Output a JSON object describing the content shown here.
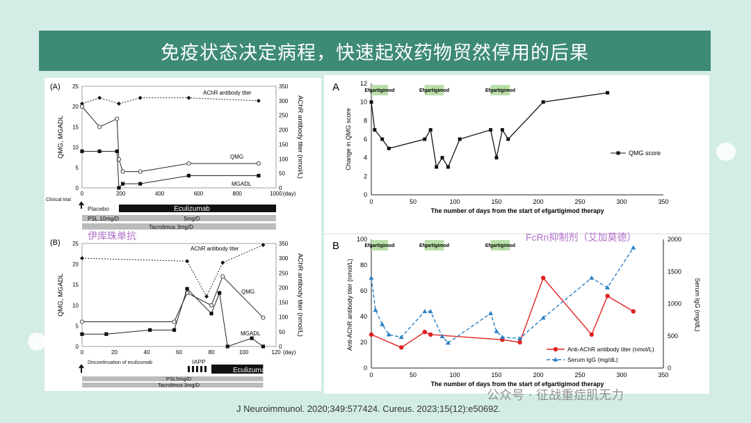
{
  "slide": {
    "title": "免疫状态决定病程，快速起效药物贸然停用的后果",
    "source": "J Neuroimmunol. 2020;349:577424. Cureus. 2023;15(12):e50692.",
    "watermark": "公众号 · 征战重症肌无力",
    "annotation_left": "伊库珠单抗",
    "annotation_right": "FcRn抑制剂（艾加莫德）"
  },
  "colors": {
    "banner": "#3d8a76",
    "background": "#d3ece6",
    "red": "#e02020",
    "blue": "#2b7fc4",
    "treatment_green": "#b9dfa8",
    "annotation": "#b070c8"
  },
  "chart_data": [
    {
      "id": "A_left",
      "type": "line",
      "panel_label": "(A)",
      "xlabel": "(day)",
      "ylabel_left": "QMG, MGADL",
      "ylabel_right": "AChR antibody titer (nmol/L)",
      "xlim": [
        0,
        1000
      ],
      "ylim_left": [
        0,
        25
      ],
      "ylim_right": [
        0,
        350
      ],
      "xticks": [
        0,
        200,
        400,
        600,
        800,
        1000
      ],
      "yticks_left": [
        0,
        5,
        10,
        15,
        20,
        25
      ],
      "yticks_right": [
        0,
        50,
        100,
        150,
        200,
        250,
        300,
        350
      ],
      "series": [
        {
          "name": "AChR antibody titer",
          "axis": "right",
          "style": "dotted-diamond",
          "points": [
            [
              0,
              290
            ],
            [
              90,
              310
            ],
            [
              190,
              290
            ],
            [
              300,
              310
            ],
            [
              550,
              310
            ],
            [
              910,
              300
            ]
          ]
        },
        {
          "name": "QMG",
          "axis": "left",
          "style": "open-circle",
          "points": [
            [
              0,
              20
            ],
            [
              90,
              15
            ],
            [
              180,
              17
            ],
            [
              190,
              7
            ],
            [
              210,
              4
            ],
            [
              300,
              4
            ],
            [
              550,
              6
            ],
            [
              910,
              6
            ]
          ]
        },
        {
          "name": "MGADL",
          "axis": "left",
          "style": "filled-square",
          "points": [
            [
              0,
              9
            ],
            [
              90,
              9
            ],
            [
              180,
              9
            ],
            [
              190,
              0
            ],
            [
              210,
              1
            ],
            [
              300,
              1
            ],
            [
              550,
              3
            ],
            [
              910,
              3
            ]
          ]
        }
      ],
      "treatments": [
        {
          "label": "Clinical trial"
        },
        {
          "label": "Placebo"
        },
        {
          "label": "Eculizumab"
        },
        {
          "label": "PSL 10mg/D"
        },
        {
          "label": "5mg/D"
        },
        {
          "label": "Tacrolimus 3mg/D"
        }
      ]
    },
    {
      "id": "B_left",
      "type": "line",
      "panel_label": "(B)",
      "xlabel": "(day)",
      "ylabel_left": "QMG, MGADL",
      "ylabel_right": "AChR antibody titer (nmol/L)",
      "xlim": [
        0,
        120
      ],
      "ylim_left": [
        0,
        25
      ],
      "ylim_right": [
        0,
        350
      ],
      "xticks": [
        0,
        20,
        40,
        60,
        80,
        100,
        120
      ],
      "yticks_left": [
        0,
        5,
        10,
        15,
        20,
        25
      ],
      "yticks_right": [
        0,
        50,
        100,
        150,
        200,
        250,
        300,
        350
      ],
      "series": [
        {
          "name": "AChR antibody titer",
          "axis": "right",
          "style": "dotted-diamond",
          "points": [
            [
              0,
              300
            ],
            [
              65,
              290
            ],
            [
              77,
              170
            ],
            [
              87,
              285
            ],
            [
              112,
              345
            ]
          ]
        },
        {
          "name": "QMG",
          "axis": "left",
          "style": "open-circle",
          "points": [
            [
              0,
              6
            ],
            [
              57,
              6
            ],
            [
              65,
              13
            ],
            [
              80,
              10
            ],
            [
              87,
              17
            ],
            [
              112,
              7
            ]
          ]
        },
        {
          "name": "MGADL",
          "axis": "left",
          "style": "filled-square",
          "points": [
            [
              0,
              3
            ],
            [
              15,
              3
            ],
            [
              42,
              4
            ],
            [
              57,
              4
            ],
            [
              65,
              14
            ],
            [
              80,
              8
            ],
            [
              85,
              13
            ],
            [
              90,
              0
            ],
            [
              105,
              2
            ],
            [
              112,
              0
            ]
          ]
        }
      ],
      "treatments": [
        {
          "label": "Discontinuation of eculizumab"
        },
        {
          "label": "IAPP"
        },
        {
          "label": "Eculizumab"
        },
        {
          "label": "PSL5mg/D"
        },
        {
          "label": "Tacrolimus 3mg/D"
        }
      ]
    },
    {
      "id": "A_right",
      "type": "line",
      "panel_label": "A",
      "xlabel": "The number of days from the start of efgartigimod therapy",
      "ylabel": "Change in QMG score",
      "xlim": [
        0,
        350
      ],
      "ylim": [
        0,
        12
      ],
      "xticks": [
        0,
        50,
        100,
        150,
        200,
        250,
        300,
        350
      ],
      "yticks": [
        0,
        2,
        4,
        6,
        8,
        10,
        12
      ],
      "legend": "QMG score",
      "treatment_label": "Efgartigimod",
      "series": [
        {
          "name": "QMG score",
          "points": [
            [
              0,
              10
            ],
            [
              4,
              7
            ],
            [
              13,
              6
            ],
            [
              21,
              5
            ],
            [
              64,
              6
            ],
            [
              71,
              7
            ],
            [
              78,
              3
            ],
            [
              85,
              4
            ],
            [
              92,
              3
            ],
            [
              106,
              6
            ],
            [
              143,
              7
            ],
            [
              150,
              4
            ],
            [
              157,
              7
            ],
            [
              164,
              6
            ],
            [
              206,
              10
            ],
            [
              283,
              11
            ]
          ]
        }
      ]
    },
    {
      "id": "B_right",
      "type": "line",
      "panel_label": "B",
      "xlabel": "The number of days from the start of efgartigimod therapy",
      "ylabel_left": "Anti-AChR antibody titer (nmol/L)",
      "ylabel_right": "Serum IgG (mg/dL)",
      "xlim": [
        0,
        350
      ],
      "ylim_left": [
        0,
        100
      ],
      "ylim_right": [
        0,
        2000
      ],
      "xticks": [
        0,
        50,
        100,
        150,
        200,
        250,
        300,
        350
      ],
      "yticks_left": [
        0,
        20,
        40,
        60,
        80,
        100
      ],
      "yticks_right": [
        0,
        500,
        1000,
        1500,
        2000
      ],
      "treatment_label": "Efgartigimod",
      "series": [
        {
          "name": "Anti-AChR antibody titer (nmol/L)",
          "axis": "left",
          "color": "#e02020",
          "points": [
            [
              0,
              26
            ],
            [
              36,
              16
            ],
            [
              64,
              28
            ],
            [
              71,
              26
            ],
            [
              157,
              22
            ],
            [
              178,
              20
            ],
            [
              206,
              70
            ],
            [
              264,
              26
            ],
            [
              283,
              56
            ],
            [
              314,
              44
            ]
          ]
        },
        {
          "name": "Serum IgG (mg/dL)",
          "axis": "right",
          "color": "#2b7fc4",
          "points": [
            [
              0,
              1400
            ],
            [
              5,
              900
            ],
            [
              13,
              680
            ],
            [
              21,
              520
            ],
            [
              36,
              480
            ],
            [
              64,
              880
            ],
            [
              71,
              880
            ],
            [
              85,
              490
            ],
            [
              92,
              390
            ],
            [
              143,
              850
            ],
            [
              150,
              570
            ],
            [
              157,
              480
            ],
            [
              178,
              460
            ],
            [
              206,
              780
            ],
            [
              264,
              1400
            ],
            [
              283,
              1250
            ],
            [
              314,
              1870
            ]
          ]
        }
      ]
    }
  ]
}
